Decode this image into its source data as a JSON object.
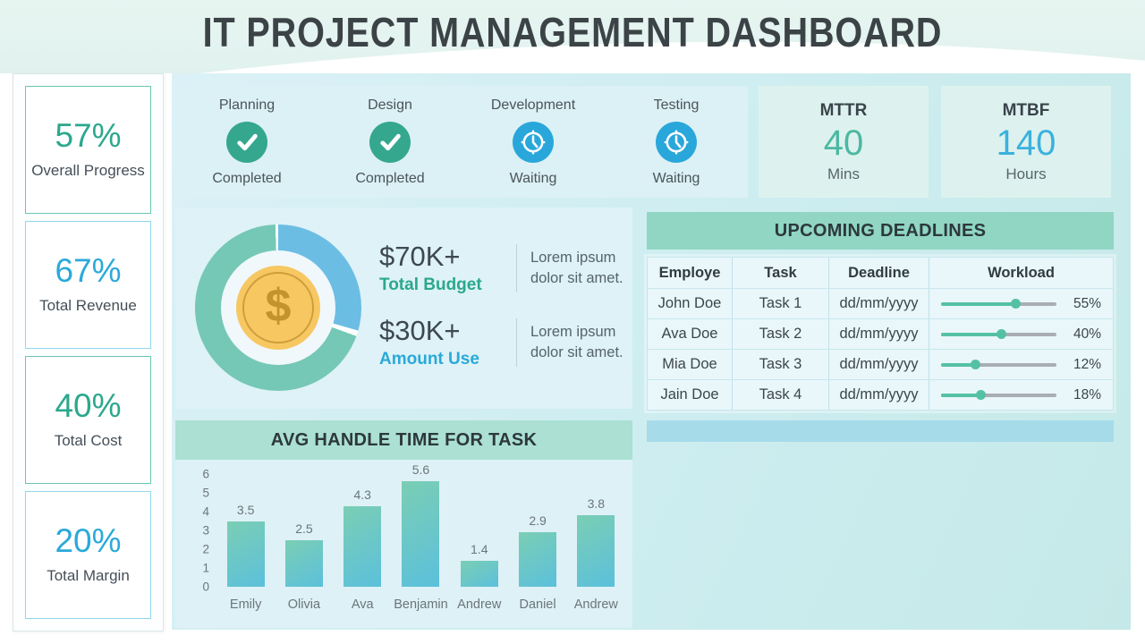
{
  "title": "IT PROJECT MANAGEMENT DASHBOARD",
  "kpi_cards": [
    {
      "value": "57%",
      "label": "Overall Progress",
      "color": "green"
    },
    {
      "value": "67%",
      "label": "Total Revenue",
      "color": "blue"
    },
    {
      "value": "40%",
      "label": "Total Cost",
      "color": "green"
    },
    {
      "value": "20%",
      "label": "Total Margin",
      "color": "blue"
    }
  ],
  "phases": [
    {
      "name": "Planning",
      "status": "Completed",
      "icon": "check-icon"
    },
    {
      "name": "Design",
      "status": "Completed",
      "icon": "check-icon"
    },
    {
      "name": "Development",
      "status": "Waiting",
      "icon": "clock-icon"
    },
    {
      "name": "Testing",
      "status": "Waiting",
      "icon": "clock-icon"
    }
  ],
  "metrics": [
    {
      "name": "MTTR",
      "value": "40",
      "unit": "Mins",
      "color": "green"
    },
    {
      "name": "MTBF",
      "value": "140",
      "unit": "Hours",
      "color": "blue"
    }
  ],
  "budget": {
    "items": [
      {
        "amount": "$70K+",
        "label": "Total Budget",
        "desc": "Lorem ipsum dolor sit amet.",
        "color": "green"
      },
      {
        "amount": "$30K+",
        "label": "Amount Use",
        "desc": "Lorem ipsum dolor sit amet.",
        "color": "blue"
      }
    ],
    "donut": {
      "center_icon": "dollar-coin-icon",
      "center_symbol": "$",
      "slices": [
        {
          "label": "Total Budget",
          "pct": 70,
          "color": "#75c8b5"
        },
        {
          "label": "Amount Use",
          "pct": 30,
          "color": "#6cbde4"
        }
      ]
    }
  },
  "deadlines": {
    "title": "UPCOMING DEADLINES",
    "columns": [
      "Employe",
      "Task",
      "Deadline",
      "Workload"
    ],
    "rows": [
      {
        "employee": "John Doe",
        "task": "Task 1",
        "deadline": "dd/mm/yyyy",
        "workload": 55
      },
      {
        "employee": "Ava Doe",
        "task": "Task 2",
        "deadline": "dd/mm/yyyy",
        "workload": 40
      },
      {
        "employee": "Mia Doe",
        "task": "Task 3",
        "deadline": "dd/mm/yyyy",
        "workload": 12
      },
      {
        "employee": "Jain Doe",
        "task": "Task 4",
        "deadline": "dd/mm/yyyy",
        "workload": 18
      }
    ]
  },
  "chart_data": {
    "type": "bar",
    "title": "AVG HANDLE TIME FOR TASK",
    "categories": [
      "Emily",
      "Olivia",
      "Ava",
      "Benjamin",
      "Andrew",
      "Daniel",
      "Andrew"
    ],
    "values": [
      3.5,
      2.5,
      4.3,
      5.6,
      1.4,
      2.9,
      3.8
    ],
    "xlabel": "",
    "ylabel": "",
    "ylim": [
      0,
      6
    ],
    "yticks": [
      0,
      1,
      2,
      3,
      4,
      5,
      6
    ],
    "grid": false,
    "legend": false,
    "bar_color_top": "#7bceb4",
    "bar_color_bottom": "#5bc0db"
  },
  "colors": {
    "green": "#2ba88d",
    "blue": "#2aa9d9",
    "teal_icon": "#35a78f",
    "blue_icon": "#29a7db",
    "slider": "#55c1a4",
    "banner": "#90d6c3",
    "chart_banner": "#abe0d3",
    "strip": "#a6dbea"
  }
}
